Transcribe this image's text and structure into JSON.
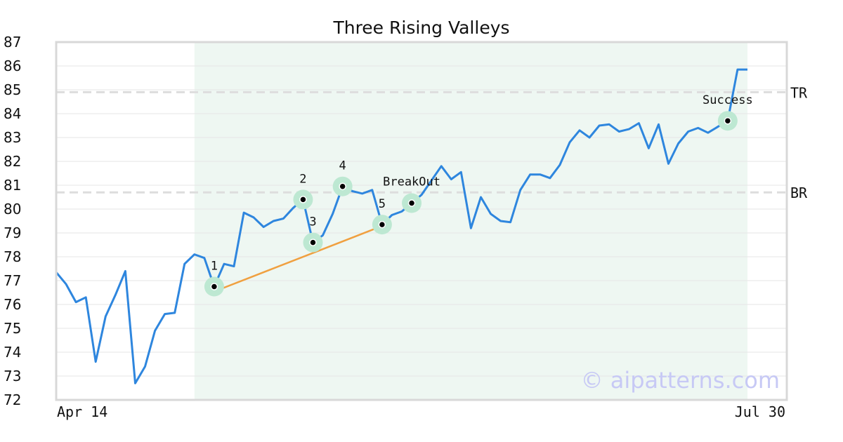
{
  "chart_data": {
    "type": "line",
    "title": "Three Rising Valleys",
    "ylim": [
      72,
      87
    ],
    "yticks": [
      72,
      73,
      74,
      75,
      76,
      77,
      78,
      79,
      80,
      81,
      82,
      83,
      84,
      85,
      86,
      87
    ],
    "xtick_labels": [
      "Apr 14",
      "Jul 30"
    ],
    "grid": "horizontal",
    "colors": {
      "line": "#2e86de",
      "trend": "#f0a040",
      "highlight_bg": "#eef7f2",
      "marker_halo": "#bde8d2",
      "ref_line": "#dddddd",
      "watermark": "#c7c9f5"
    },
    "series": [
      {
        "values": [
          77.35,
          76.85,
          76.1,
          76.3,
          73.6,
          75.5,
          76.4,
          77.4,
          72.7,
          73.4,
          74.9,
          75.6,
          75.65,
          77.7,
          78.1,
          77.95,
          76.75,
          77.7,
          77.6,
          79.85,
          79.65,
          79.25,
          79.5,
          79.6,
          80.05,
          80.4,
          78.6,
          78.9,
          79.8,
          80.95,
          80.75,
          80.65,
          80.8,
          79.35,
          79.75,
          79.9,
          80.25,
          80.6,
          81.2,
          81.8,
          81.25,
          81.55,
          79.2,
          80.5,
          79.8,
          79.5,
          79.45,
          80.8,
          81.45,
          81.45,
          81.3,
          81.85,
          82.8,
          83.3,
          83.0,
          83.5,
          83.55,
          83.25,
          83.35,
          83.6,
          82.55,
          83.55,
          81.9,
          82.75,
          83.25,
          83.4,
          83.2,
          83.45,
          83.7,
          85.85,
          85.85
        ]
      }
    ],
    "highlight_range": {
      "start_index": 14,
      "end_index": 70
    },
    "reference_lines": [
      {
        "label": "TR",
        "value": 84.9
      },
      {
        "label": "BR",
        "value": 80.7
      }
    ],
    "trendline": {
      "from_index": 16,
      "to_index": 33
    },
    "markers": [
      {
        "label": "1",
        "index": 16
      },
      {
        "label": "2",
        "index": 25
      },
      {
        "label": "3",
        "index": 26
      },
      {
        "label": "4",
        "index": 29
      },
      {
        "label": "5",
        "index": 33
      },
      {
        "label": "BreakOut",
        "index": 36
      },
      {
        "label": "Success",
        "index": 68
      }
    ],
    "watermark": "© aipatterns.com"
  }
}
